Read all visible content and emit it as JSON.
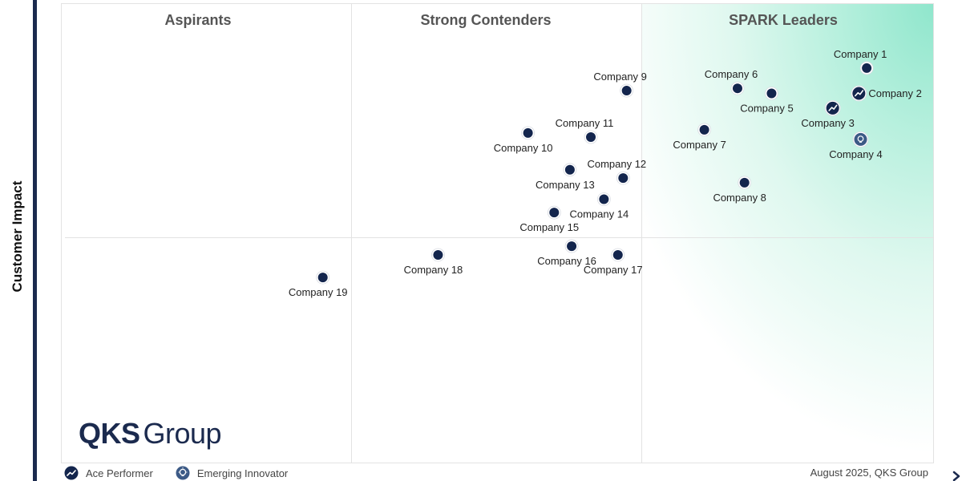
{
  "ylabel": "Customer Impact",
  "quadrants": {
    "aspirants": "Aspirants",
    "strong_contenders": "Strong Contenders",
    "leaders": "SPARK Leaders"
  },
  "logo": {
    "strong": "QKS",
    "light": "Group"
  },
  "legend": {
    "ace": "Ace Performer",
    "emerging": "Emerging Innovator"
  },
  "footer": "August 2025, QKS Group",
  "colors": {
    "dot": "#13254d",
    "axis": "#1b2a4e",
    "leader_gradient": "#8fe6cc",
    "emerging_fill": "#3c5a86"
  },
  "chart_data": {
    "type": "scatter",
    "xlabel": "",
    "ylabel": "Customer Impact",
    "xlim": [
      0,
      100
    ],
    "ylim": [
      0,
      100
    ],
    "quadrant_dividers": {
      "x": [
        33.3,
        66.5
      ],
      "y": 49.5
    },
    "points": [
      {
        "name": "Company 1",
        "x": 92.3,
        "y": 85.9,
        "marker": "dot",
        "label_pos": "above"
      },
      {
        "name": "Company 2",
        "x": 91.4,
        "y": 80.4,
        "marker": "ace",
        "label_pos": "right"
      },
      {
        "name": "Company 3",
        "x": 88.4,
        "y": 77.2,
        "marker": "ace",
        "label_pos": "below"
      },
      {
        "name": "Company 4",
        "x": 91.6,
        "y": 70.4,
        "marker": "emerging",
        "label_pos": "below"
      },
      {
        "name": "Company 5",
        "x": 81.4,
        "y": 80.4,
        "marker": "dot",
        "label_pos": "below"
      },
      {
        "name": "Company 6",
        "x": 77.5,
        "y": 81.5,
        "marker": "dot",
        "label_pos": "above"
      },
      {
        "name": "Company 7",
        "x": 73.7,
        "y": 72.5,
        "marker": "dot",
        "label_pos": "below"
      },
      {
        "name": "Company 8",
        "x": 78.3,
        "y": 61.0,
        "marker": "dot",
        "label_pos": "below"
      },
      {
        "name": "Company 9",
        "x": 64.8,
        "y": 81.0,
        "marker": "dot",
        "label_pos": "above"
      },
      {
        "name": "Company 10",
        "x": 53.5,
        "y": 71.8,
        "marker": "dot",
        "label_pos": "below"
      },
      {
        "name": "Company 11",
        "x": 60.7,
        "y": 70.9,
        "marker": "dot",
        "label_pos": "above"
      },
      {
        "name": "Company 12",
        "x": 64.4,
        "y": 62.0,
        "marker": "dot",
        "label_pos": "above"
      },
      {
        "name": "Company 13",
        "x": 58.3,
        "y": 63.8,
        "marker": "dot",
        "label_pos": "below"
      },
      {
        "name": "Company 14",
        "x": 62.2,
        "y": 57.4,
        "marker": "dot",
        "label_pos": "below"
      },
      {
        "name": "Company 15",
        "x": 56.5,
        "y": 54.5,
        "marker": "dot",
        "label_pos": "below"
      },
      {
        "name": "Company 16",
        "x": 58.5,
        "y": 47.2,
        "marker": "dot",
        "label_pos": "below"
      },
      {
        "name": "Company 17",
        "x": 63.8,
        "y": 45.3,
        "marker": "dot",
        "label_pos": "below"
      },
      {
        "name": "Company 18",
        "x": 43.2,
        "y": 45.3,
        "marker": "dot",
        "label_pos": "below"
      },
      {
        "name": "Company 19",
        "x": 30.0,
        "y": 40.4,
        "marker": "dot",
        "label_pos": "below"
      }
    ]
  }
}
